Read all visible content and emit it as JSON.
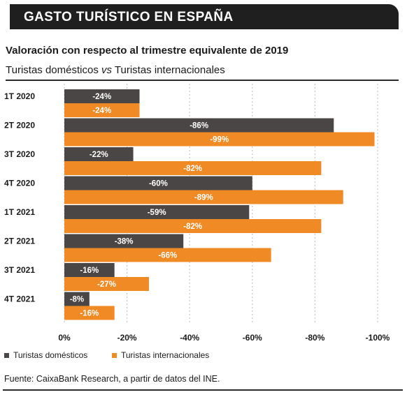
{
  "header": {
    "title": "GASTO TURÍSTICO EN ESPAÑA"
  },
  "subtitle": "Valoración con respecto al trimestre equivalente de 2019",
  "subtitle2_prefix": "Turistas domésticos ",
  "subtitle2_vs": "vs",
  "subtitle2_suffix": " Turistas internacionales",
  "legend": {
    "domestic": "Turistas domésticos",
    "international": "Turistas internacionales"
  },
  "source": "Fuente: CaixaBank Research, a partir de datos del INE.",
  "colors": {
    "domestic": "#4a4645",
    "international": "#f08a24",
    "header_bg": "#1f1f1f"
  },
  "chart_data": {
    "type": "bar",
    "orientation": "horizontal",
    "categories": [
      "1T 2020",
      "2T 2020",
      "3T 2020",
      "4T 2020",
      "1T 2021",
      "2T 2021",
      "3T 2021",
      "4T 2021"
    ],
    "series": [
      {
        "name": "Turistas domésticos",
        "values": [
          -24,
          -86,
          -22,
          -60,
          -59,
          -38,
          -16,
          -8
        ],
        "labels": [
          "-24%",
          "-86%",
          "-22%",
          "-60%",
          "-59%",
          "-38%",
          "-16%",
          "-8%"
        ]
      },
      {
        "name": "Turistas internacionales",
        "values": [
          -24,
          -99,
          -82,
          -89,
          -82,
          -66,
          -27,
          -16
        ],
        "labels": [
          "-24%",
          "-99%",
          "-82%",
          "-89%",
          "-82%",
          "-66%",
          "-27%",
          "-16%"
        ]
      }
    ],
    "xlim": [
      0,
      -100
    ],
    "xticks": [
      "0%",
      "-20%",
      "-40%",
      "-60%",
      "-80%",
      "-100%"
    ],
    "grid": true,
    "legend_position": "bottom-left"
  }
}
